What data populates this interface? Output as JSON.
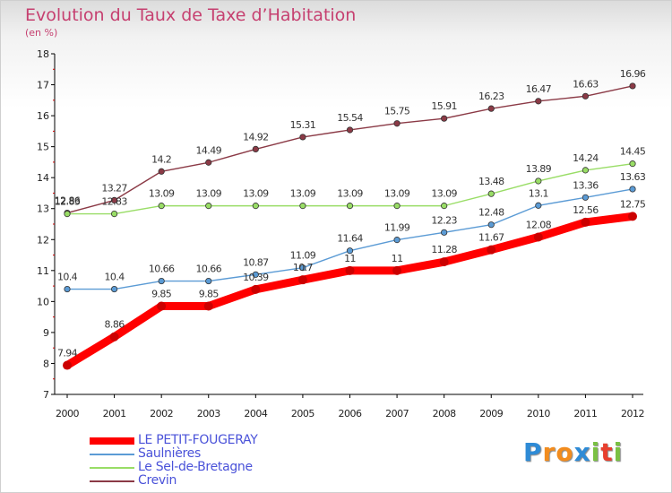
{
  "header": {
    "title": "Evolution du Taux de Taxe d’Habitation",
    "subtitle": "(en %)"
  },
  "chart_data": {
    "type": "line",
    "x": [
      2000,
      2001,
      2002,
      2003,
      2004,
      2005,
      2006,
      2007,
      2008,
      2009,
      2010,
      2011,
      2012
    ],
    "x_tick_labels": [
      "2000",
      "2001",
      "2002",
      "2003",
      "2004",
      "2005",
      "2006",
      "2007",
      "2008",
      "2009",
      "2010",
      "2011",
      "2012"
    ],
    "y_tick_labels": [
      "7",
      "8",
      "9",
      "10",
      "11",
      "12",
      "13",
      "14",
      "15",
      "16",
      "17",
      "18"
    ],
    "ylim": [
      7,
      18
    ],
    "grid": false,
    "legend_position": "bottom-left",
    "series": [
      {
        "name": "LE PETIT-FOUGERAY",
        "color": "#ff0000",
        "values": [
          7.94,
          8.86,
          9.85,
          9.85,
          10.39,
          10.7,
          11,
          11,
          11.28,
          11.67,
          12.08,
          12.56,
          12.75
        ],
        "labels": [
          "7.94",
          "8.86",
          "9.85",
          "9.85",
          "10.39",
          "10.7",
          "11",
          "11",
          "11.28",
          "11.67",
          "12.08",
          "12.56",
          "12.75"
        ]
      },
      {
        "name": "Saulnières",
        "color": "#5b9bd5",
        "values": [
          10.4,
          10.4,
          10.66,
          10.66,
          10.87,
          11.09,
          11.64,
          11.99,
          12.23,
          12.48,
          13.1,
          13.36,
          13.63
        ],
        "labels": [
          "10.4",
          "10.4",
          "10.66",
          "10.66",
          "10.87",
          "11.09",
          "11.64",
          "11.99",
          "12.23",
          "12.48",
          "13.1",
          "13.36",
          "13.63"
        ]
      },
      {
        "name": "Le Sel-de-Bretagne",
        "color": "#99dd66",
        "values": [
          12.83,
          12.83,
          13.09,
          13.09,
          13.09,
          13.09,
          13.09,
          13.09,
          13.09,
          13.48,
          13.89,
          14.24,
          14.45
        ],
        "labels": [
          "12.83",
          "12.83",
          "13.09",
          "13.09",
          "13.09",
          "13.09",
          "13.09",
          "13.09",
          "13.09",
          "13.48",
          "13.89",
          "14.24",
          "14.45"
        ]
      },
      {
        "name": "Crevin",
        "color": "#8b3a46",
        "values": [
          12.86,
          13.27,
          14.2,
          14.49,
          14.92,
          15.31,
          15.54,
          15.75,
          15.91,
          16.23,
          16.47,
          16.63,
          16.96
        ],
        "labels": [
          "12.86",
          "13.27",
          "14.2",
          "14.49",
          "14.92",
          "15.31",
          "15.54",
          "15.75",
          "15.91",
          "16.23",
          "16.47",
          "16.63",
          "16.96"
        ]
      }
    ]
  },
  "legend": {
    "items": [
      {
        "label": "LE PETIT-FOUGERAY",
        "color": "#ff0000"
      },
      {
        "label": "Saulnières",
        "color": "#5b9bd5"
      },
      {
        "label": "Le Sel-de-Bretagne",
        "color": "#99dd66"
      },
      {
        "label": "Crevin",
        "color": "#8b3a46"
      }
    ]
  },
  "logo": {
    "text": "Proxiti",
    "letters": [
      "P",
      "r",
      "o",
      "x",
      "i",
      "t",
      "i"
    ],
    "colors": [
      "#2e8bd6",
      "#f28c1e",
      "#f28c1e",
      "#2e8bd6",
      "#7ac143",
      "#e8402f",
      "#7ac143"
    ]
  }
}
